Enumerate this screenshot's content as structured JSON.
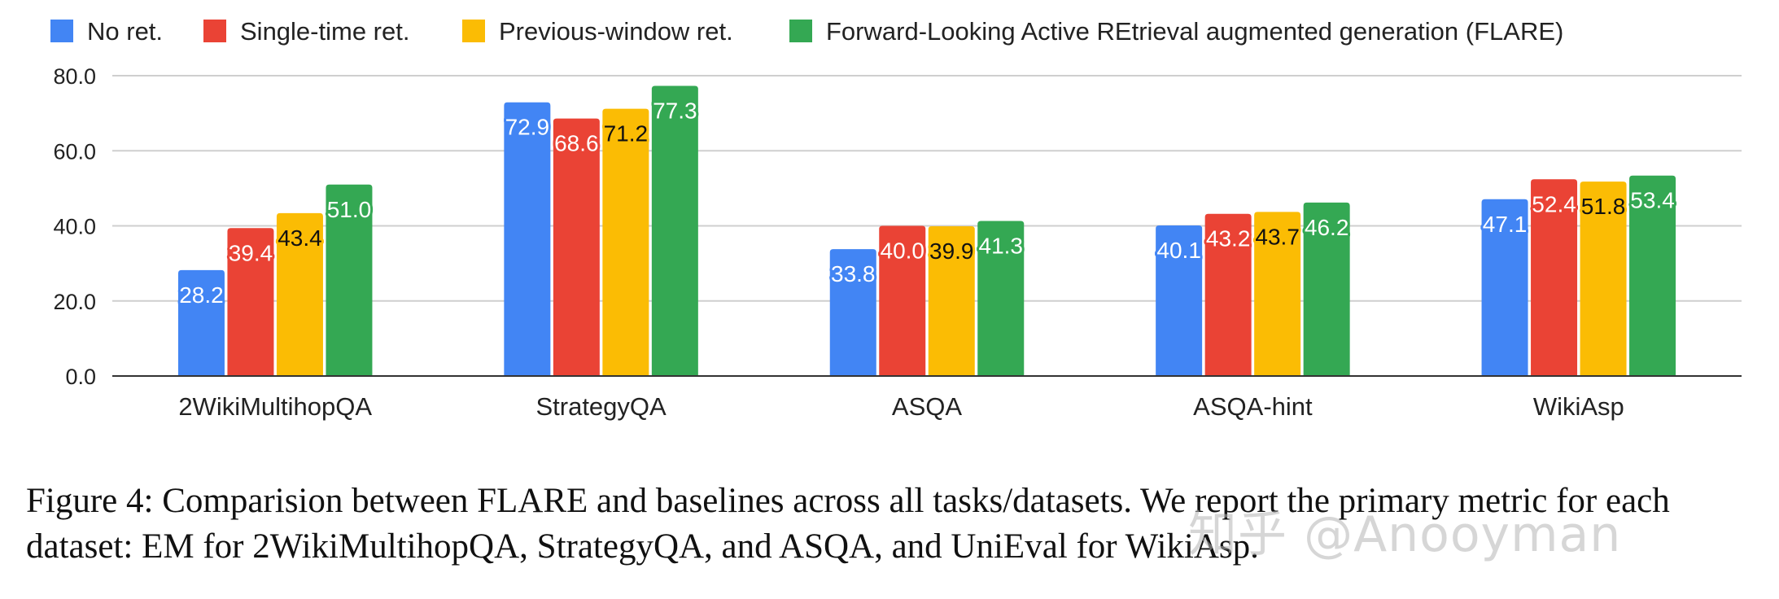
{
  "chart_data": {
    "type": "bar",
    "title": "",
    "xlabel": "",
    "ylabel": "",
    "ylim": [
      0,
      80
    ],
    "yticks": [
      "0.0",
      "20.0",
      "40.0",
      "60.0",
      "80.0"
    ],
    "grid": true,
    "legend_position": "top",
    "categories": [
      "2WikiMultihopQA",
      "StrategyQA",
      "ASQA",
      "ASQA-hint",
      "WikiAsp"
    ],
    "series": [
      {
        "name": "No ret.",
        "color": "#4285F4",
        "values": [
          28.2,
          72.9,
          33.8,
          40.1,
          47.1
        ],
        "labels": [
          "28.2",
          "72.9",
          "33.8",
          "40.1",
          "47.1"
        ]
      },
      {
        "name": "Single-time ret.",
        "color": "#EA4335",
        "values": [
          39.4,
          68.6,
          40.0,
          43.2,
          52.4
        ],
        "labels": [
          "39.4",
          "68.6",
          "40.0",
          "43.2",
          "52.4"
        ]
      },
      {
        "name": "Previous-window ret.",
        "color": "#FBBC04",
        "values": [
          43.4,
          71.2,
          39.9,
          43.7,
          51.8
        ],
        "labels": [
          "43.4",
          "71.2",
          "39.9",
          "43.7",
          "51.8"
        ]
      },
      {
        "name": "Forward-Looking Active REtrieval augmented generation (FLARE)",
        "color": "#34A853",
        "values": [
          51.0,
          77.3,
          41.3,
          46.2,
          53.4
        ],
        "labels": [
          "51.0",
          "77.3",
          "41.3",
          "46.2",
          "53.4"
        ]
      }
    ]
  },
  "caption": "Figure 4: Comparision between FLARE and baselines across all tasks/datasets. We report the primary metric for each dataset: EM for 2WikiMultihopQA, StrategyQA, and ASQA, and UniEval for WikiAsp.",
  "watermark": "知乎 @Anooyman"
}
